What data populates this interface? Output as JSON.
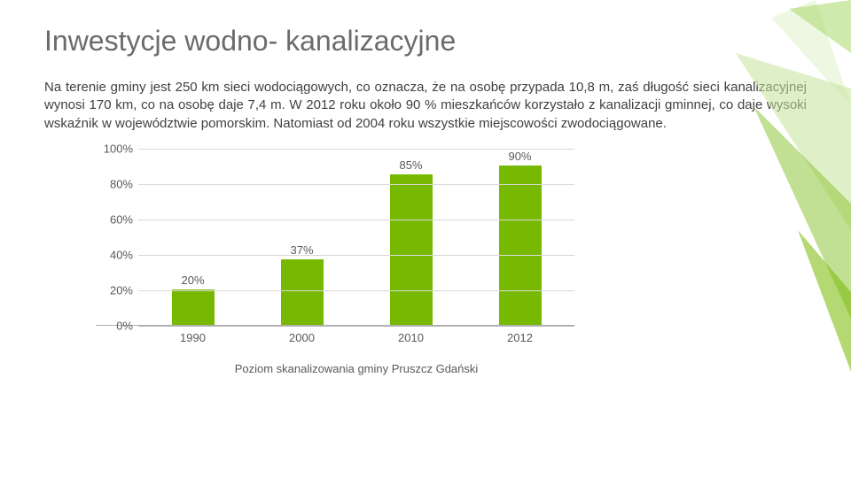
{
  "title": "Inwestycje wodno- kanalizacyjne",
  "paragraph": "Na terenie gminy jest 250 km sieci wodociągowych, co oznacza, że na osobę przypada 10,8 m, zaś długość sieci kanalizacyjnej wynosi 170 km, co na osobę daje 7,4 m. W 2012 roku około 90 % mieszkańców korzystało z kanalizacji gminnej, co daje wysoki wskaźnik w województwie pomorskim. Natomiast od 2004 roku wszystkie miejscowości zwodociągowane.",
  "chart": {
    "type": "bar",
    "categories": [
      "1990",
      "2000",
      "2010",
      "2012"
    ],
    "values": [
      20,
      37,
      85,
      90
    ],
    "value_labels": [
      "20%",
      "37%",
      "85%",
      "90%"
    ],
    "bar_color": "#76b900",
    "ylim": [
      0,
      100
    ],
    "ytick_step": 20,
    "yticks": [
      "0%",
      "20%",
      "40%",
      "60%",
      "80%",
      "100%"
    ],
    "grid_color": "#d9d9d9",
    "axis_color": "#b0b0b0",
    "bg_color": "#ffffff",
    "label_fontsize": 13,
    "label_color": "#595959",
    "chart_label": "Poziom skanalizowania gminy Pruszcz Gdański"
  },
  "decor": {
    "tri_colors": [
      "#dff0c8",
      "#c5e49a",
      "#aad86b",
      "#8fc63d",
      "#76b900"
    ]
  }
}
